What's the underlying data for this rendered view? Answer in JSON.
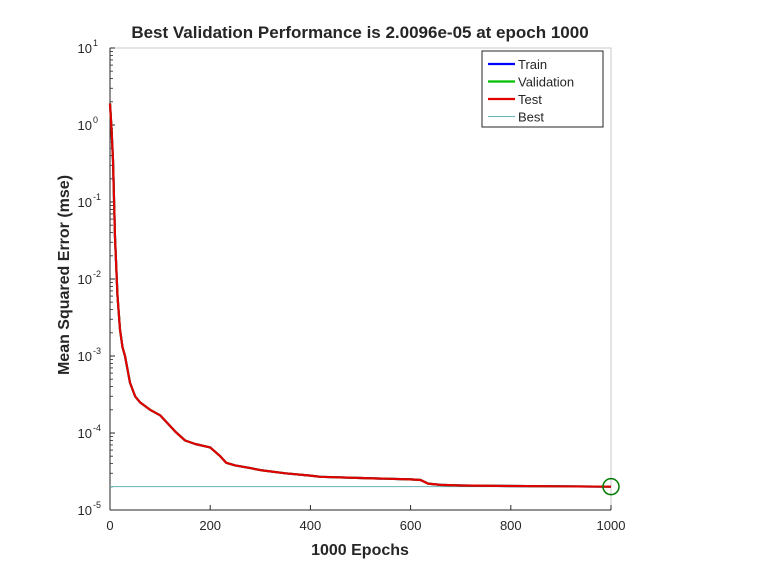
{
  "chart_data": {
    "type": "line",
    "title": "Best Validation Performance is 2.0096e-05 at epoch 1000",
    "xlabel": "1000 Epochs",
    "ylabel": "Mean Squared Error  (mse)",
    "xlim": [
      0,
      1000
    ],
    "ylim": [
      1e-05,
      10
    ],
    "yscale": "log",
    "grid": false,
    "legend_position": "top-right",
    "x_ticks": [
      0,
      200,
      400,
      600,
      800,
      1000
    ],
    "y_ticks": [
      {
        "value": 1e-05,
        "base": "10",
        "exp": "-5"
      },
      {
        "value": 0.0001,
        "base": "10",
        "exp": "-4"
      },
      {
        "value": 0.001,
        "base": "10",
        "exp": "-3"
      },
      {
        "value": 0.01,
        "base": "10",
        "exp": "-2"
      },
      {
        "value": 0.1,
        "base": "10",
        "exp": "-1"
      },
      {
        "value": 1,
        "base": "10",
        "exp": "0"
      },
      {
        "value": 10,
        "base": "10",
        "exp": "1"
      }
    ],
    "series": [
      {
        "name": "Train",
        "color": "#0000ff",
        "x": [
          0,
          3,
          6,
          10,
          15,
          20,
          25,
          30,
          40,
          50,
          60,
          80,
          100,
          110,
          130,
          150,
          170,
          200,
          220,
          232,
          250,
          280,
          300,
          350,
          400,
          420,
          500,
          600,
          620,
          635,
          660,
          700,
          800,
          900,
          1000
        ],
        "y": [
          1.9,
          0.9,
          0.35,
          0.035,
          0.006,
          0.0022,
          0.0013,
          0.001,
          0.00045,
          0.0003,
          0.00025,
          0.0002,
          0.00017,
          0.000145,
          0.000105,
          8e-05,
          7.2e-05,
          6.5e-05,
          5e-05,
          4.1e-05,
          3.8e-05,
          3.5e-05,
          3.3e-05,
          3e-05,
          2.8e-05,
          2.7e-05,
          2.6e-05,
          2.5e-05,
          2.45e-05,
          2.2e-05,
          2.12e-05,
          2.08e-05,
          2.05e-05,
          2.03e-05,
          2.01e-05
        ]
      },
      {
        "name": "Validation",
        "color": "#00c000",
        "x": [
          0,
          3,
          6,
          10,
          15,
          20,
          25,
          30,
          40,
          50,
          60,
          80,
          100,
          110,
          130,
          150,
          170,
          200,
          220,
          232,
          250,
          280,
          300,
          350,
          400,
          420,
          500,
          600,
          620,
          635,
          660,
          700,
          800,
          900,
          1000
        ],
        "y": [
          1.9,
          0.9,
          0.35,
          0.035,
          0.006,
          0.0022,
          0.0013,
          0.001,
          0.00045,
          0.0003,
          0.00025,
          0.0002,
          0.00017,
          0.000145,
          0.000105,
          8e-05,
          7.2e-05,
          6.5e-05,
          5e-05,
          4.1e-05,
          3.8e-05,
          3.5e-05,
          3.3e-05,
          3e-05,
          2.8e-05,
          2.7e-05,
          2.6e-05,
          2.5e-05,
          2.45e-05,
          2.2e-05,
          2.12e-05,
          2.08e-05,
          2.05e-05,
          2.03e-05,
          2.01e-05
        ]
      },
      {
        "name": "Test",
        "color": "#e00000",
        "x": [
          0,
          3,
          6,
          10,
          15,
          20,
          25,
          30,
          40,
          50,
          60,
          80,
          100,
          110,
          130,
          150,
          170,
          200,
          220,
          232,
          250,
          280,
          300,
          350,
          400,
          420,
          500,
          600,
          620,
          635,
          660,
          700,
          800,
          900,
          1000
        ],
        "y": [
          1.9,
          0.9,
          0.35,
          0.035,
          0.006,
          0.0022,
          0.0013,
          0.001,
          0.00045,
          0.0003,
          0.00025,
          0.0002,
          0.00017,
          0.000145,
          0.000105,
          8e-05,
          7.2e-05,
          6.5e-05,
          5e-05,
          4.1e-05,
          3.8e-05,
          3.5e-05,
          3.3e-05,
          3e-05,
          2.8e-05,
          2.7e-05,
          2.6e-05,
          2.5e-05,
          2.45e-05,
          2.2e-05,
          2.12e-05,
          2.08e-05,
          2.05e-05,
          2.03e-05,
          2.01e-05
        ]
      }
    ],
    "best": {
      "name": "Best",
      "color": "#66b3b3",
      "epoch": 1000,
      "value": 2.0096e-05
    }
  }
}
